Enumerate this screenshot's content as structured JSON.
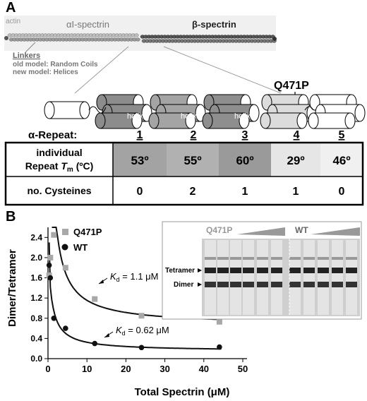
{
  "panel_a": {
    "letter": "A",
    "actin_label": "actin",
    "alpha_spectrin_label": "αI-spectrin",
    "beta_spectrin_label": "β-spectrin",
    "linkers_label": "Linkers",
    "old_model_label": "old model: Random Coils",
    "new_model_label": "new model: Helices",
    "mutation_label": "Q471P",
    "helix_label": "helix",
    "repeat_row_label": "α-Repeat:",
    "repeats": [
      "1",
      "2",
      "3",
      "4",
      "5"
    ],
    "table": {
      "tm_label_line1": "individual",
      "tm_label_line2": "Repeat",
      "tm_label_sym": "T",
      "tm_label_sub": "m",
      "tm_label_unit": "(ºC)",
      "tm_values": [
        "53º",
        "55º",
        "60º",
        "29º",
        "46º"
      ],
      "cys_label": "no. Cysteines",
      "cys_values": [
        "0",
        "2",
        "1",
        "1",
        "0"
      ]
    }
  },
  "panel_b": {
    "letter": "B",
    "kd_prefix": "K",
    "kd_sub": "d",
    "kd_q471p": " = 1.1 μM",
    "kd_wt": " = 0.62 μM",
    "gel": {
      "q471p_label": "Q471P",
      "wt_label": "WT",
      "tetramer_label": "Tetramer",
      "dimer_label": "Dimer"
    }
  },
  "chart_data": {
    "type": "scatter",
    "xlabel": "Total Spectrin (μM)",
    "ylabel": "Dimer/Tetramer",
    "xlim": [
      0,
      50
    ],
    "ylim": [
      0,
      2.6
    ],
    "xticks": [
      "0",
      "10",
      "20",
      "30",
      "40",
      "50"
    ],
    "yticks": [
      "0.0",
      "0.4",
      "0.8",
      "1.2",
      "1.6",
      "2.0",
      "2.4"
    ],
    "legend_position": "top-right",
    "series": [
      {
        "name": "Q471P",
        "marker": "square",
        "color": "#a8a8a8",
        "x": [
          0.3,
          0.6,
          1.5,
          4.5,
          12,
          24,
          44
        ],
        "y": [
          1.65,
          2.0,
          2.45,
          1.8,
          1.18,
          0.85,
          0.73
        ]
      },
      {
        "name": "WT",
        "marker": "circle",
        "color": "#111111",
        "x": [
          0.3,
          0.6,
          1.5,
          4.5,
          12,
          24,
          44
        ],
        "y": [
          1.85,
          1.6,
          0.8,
          0.6,
          0.3,
          0.22,
          0.23
        ]
      }
    ]
  }
}
